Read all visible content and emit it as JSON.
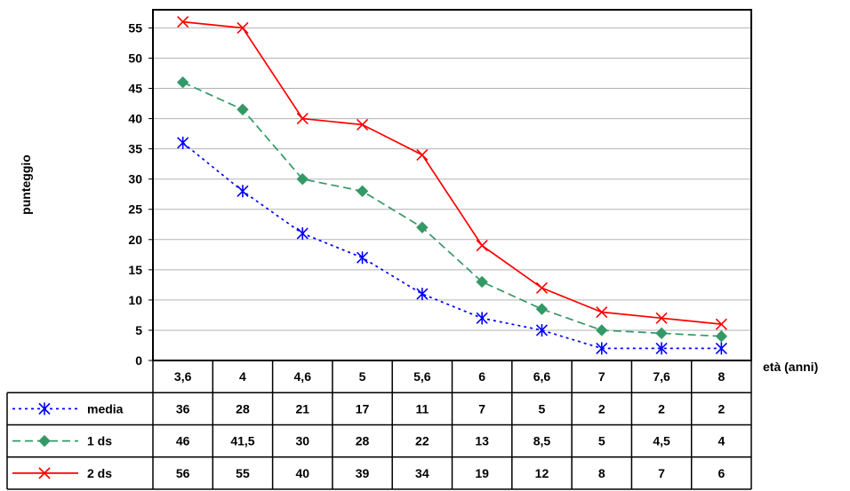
{
  "chart_data": {
    "type": "line",
    "title": "",
    "xlabel": "età (anni)",
    "ylabel": "punteggio",
    "ylim": [
      0,
      58
    ],
    "yticks": [
      0,
      5,
      10,
      15,
      20,
      25,
      30,
      35,
      40,
      45,
      50,
      55
    ],
    "grid": true,
    "categories": [
      "3,6",
      "4",
      "4,6",
      "5",
      "5,6",
      "6",
      "6,6",
      "7",
      "7,6",
      "8"
    ],
    "series": [
      {
        "name": "media",
        "color": "#0000ff",
        "marker": "asterisk",
        "line_style": "dotted",
        "values": [
          36,
          28,
          21,
          17,
          11,
          7,
          5,
          2,
          2,
          2
        ],
        "labels": [
          "36",
          "28",
          "21",
          "17",
          "11",
          "7",
          "5",
          "2",
          "2",
          "2"
        ]
      },
      {
        "name": "1 ds",
        "color": "#339966",
        "marker": "diamond",
        "line_style": "dashed",
        "values": [
          46,
          41.5,
          30,
          28,
          22,
          13,
          8.5,
          5,
          4.5,
          4
        ],
        "labels": [
          "46",
          "41,5",
          "30",
          "28",
          "22",
          "13",
          "8,5",
          "5",
          "4,5",
          "4"
        ]
      },
      {
        "name": "2 ds",
        "color": "#ff0000",
        "marker": "x",
        "line_style": "solid",
        "values": [
          56,
          55,
          40,
          39,
          34,
          19,
          12,
          8,
          7,
          6
        ],
        "labels": [
          "56",
          "55",
          "40",
          "39",
          "34",
          "19",
          "12",
          "8",
          "7",
          "6"
        ]
      }
    ]
  }
}
